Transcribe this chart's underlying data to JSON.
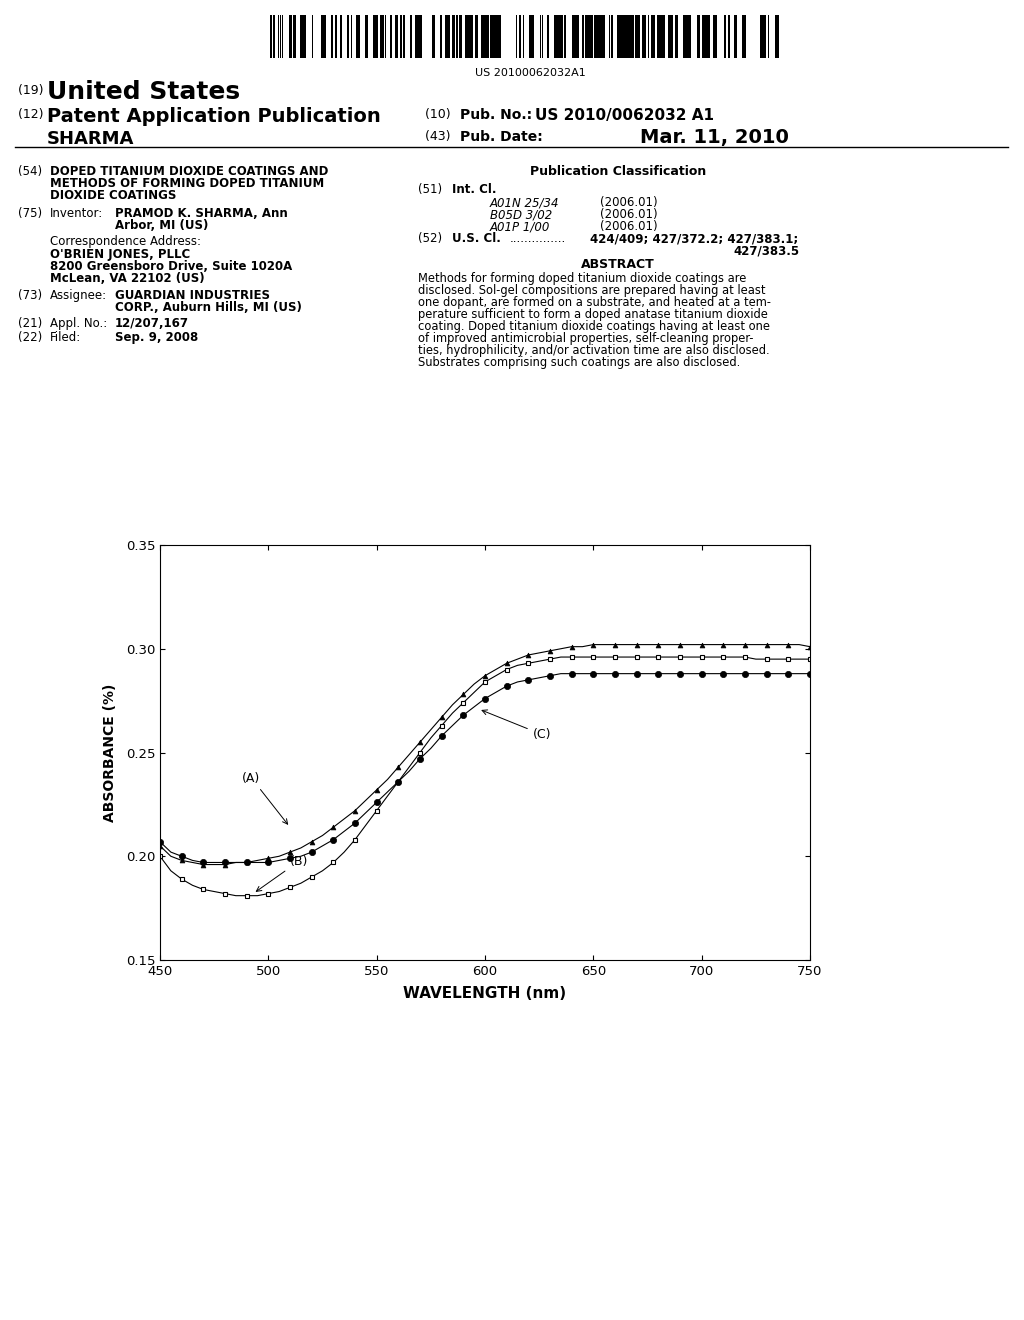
{
  "barcode_text": "US 20100062032A1",
  "pub_no_label": "(10) Pub. No.:",
  "pub_no_value": "US 2010/0062032 A1",
  "pub_date_label": "(43) Pub. Date:",
  "pub_date_value": "Mar. 11, 2010",
  "field_54_text_lines": [
    "DOPED TITANIUM DIOXIDE COATINGS AND",
    "METHODS OF FORMING DOPED TITANIUM",
    "DIOXIDE COATINGS"
  ],
  "field_75_text": "PRAMOD K. SHARMA, Ann\nArbor, MI (US)",
  "corr_address_lines": [
    "O'BRIEN JONES, PLLC",
    "8200 Greensboro Drive, Suite 1020A",
    "McLean, VA 22102 (US)"
  ],
  "field_73_text": "GUARDIAN INDUSTRIES\nCORP., Auburn Hills, MI (US)",
  "field_21_text": "12/207,167",
  "field_22_text": "Sep. 9, 2008",
  "field_51_lines": [
    [
      "A01N 25/34",
      "(2006.01)"
    ],
    [
      "B05D 3/02",
      "(2006.01)"
    ],
    [
      "A01P 1/00",
      "(2006.01)"
    ]
  ],
  "abstract_lines": [
    "Methods for forming doped titanium dioxide coatings are",
    "disclosed. Sol-gel compositions are prepared having at least",
    "one dopant, are formed on a substrate, and heated at a tem-",
    "perature sufficient to form a doped anatase titanium dioxide",
    "coating. Doped titanium dioxide coatings having at least one",
    "of improved antimicrobial properties, self-cleaning proper-",
    "ties, hydrophilicity, and/or activation time are also disclosed.",
    "Substrates comprising such coatings are also disclosed."
  ],
  "xlabel": "WAVELENGTH (nm)",
  "ylabel": "ABSORBANCE (%)",
  "xlim": [
    450,
    750
  ],
  "ylim": [
    0.15,
    0.35
  ],
  "yticks": [
    0.15,
    0.2,
    0.25,
    0.3,
    0.35
  ],
  "xticks": [
    450,
    500,
    550,
    600,
    650,
    700,
    750
  ],
  "series_A_x": [
    450,
    455,
    460,
    465,
    470,
    475,
    480,
    485,
    490,
    495,
    500,
    505,
    510,
    515,
    520,
    525,
    530,
    535,
    540,
    545,
    550,
    555,
    560,
    565,
    570,
    575,
    580,
    585,
    590,
    595,
    600,
    605,
    610,
    615,
    620,
    625,
    630,
    635,
    640,
    645,
    650,
    655,
    660,
    665,
    670,
    675,
    680,
    685,
    690,
    695,
    700,
    705,
    710,
    715,
    720,
    725,
    730,
    735,
    740,
    745,
    750
  ],
  "series_A_y": [
    0.205,
    0.2,
    0.198,
    0.197,
    0.196,
    0.196,
    0.196,
    0.197,
    0.197,
    0.198,
    0.199,
    0.2,
    0.202,
    0.204,
    0.207,
    0.21,
    0.214,
    0.218,
    0.222,
    0.227,
    0.232,
    0.237,
    0.243,
    0.249,
    0.255,
    0.261,
    0.267,
    0.273,
    0.278,
    0.283,
    0.287,
    0.29,
    0.293,
    0.295,
    0.297,
    0.298,
    0.299,
    0.3,
    0.301,
    0.301,
    0.302,
    0.302,
    0.302,
    0.302,
    0.302,
    0.302,
    0.302,
    0.302,
    0.302,
    0.302,
    0.302,
    0.302,
    0.302,
    0.302,
    0.302,
    0.302,
    0.302,
    0.302,
    0.302,
    0.302,
    0.301
  ],
  "series_B_x": [
    450,
    455,
    460,
    465,
    470,
    475,
    480,
    485,
    490,
    495,
    500,
    505,
    510,
    515,
    520,
    525,
    530,
    535,
    540,
    545,
    550,
    555,
    560,
    565,
    570,
    575,
    580,
    585,
    590,
    595,
    600,
    605,
    610,
    615,
    620,
    625,
    630,
    635,
    640,
    645,
    650,
    655,
    660,
    665,
    670,
    675,
    680,
    685,
    690,
    695,
    700,
    705,
    710,
    715,
    720,
    725,
    730,
    735,
    740,
    745,
    750
  ],
  "series_B_y": [
    0.2,
    0.193,
    0.189,
    0.186,
    0.184,
    0.183,
    0.182,
    0.181,
    0.181,
    0.181,
    0.182,
    0.183,
    0.185,
    0.187,
    0.19,
    0.193,
    0.197,
    0.202,
    0.208,
    0.215,
    0.222,
    0.229,
    0.236,
    0.243,
    0.25,
    0.257,
    0.263,
    0.269,
    0.274,
    0.279,
    0.284,
    0.287,
    0.29,
    0.292,
    0.293,
    0.294,
    0.295,
    0.296,
    0.296,
    0.296,
    0.296,
    0.296,
    0.296,
    0.296,
    0.296,
    0.296,
    0.296,
    0.296,
    0.296,
    0.296,
    0.296,
    0.296,
    0.296,
    0.296,
    0.296,
    0.295,
    0.295,
    0.295,
    0.295,
    0.295,
    0.295
  ],
  "series_C_x": [
    450,
    455,
    460,
    465,
    470,
    475,
    480,
    485,
    490,
    495,
    500,
    505,
    510,
    515,
    520,
    525,
    530,
    535,
    540,
    545,
    550,
    555,
    560,
    565,
    570,
    575,
    580,
    585,
    590,
    595,
    600,
    605,
    610,
    615,
    620,
    625,
    630,
    635,
    640,
    645,
    650,
    655,
    660,
    665,
    670,
    675,
    680,
    685,
    690,
    695,
    700,
    705,
    710,
    715,
    720,
    725,
    730,
    735,
    740,
    745,
    750
  ],
  "series_C_y": [
    0.207,
    0.202,
    0.2,
    0.198,
    0.197,
    0.197,
    0.197,
    0.197,
    0.197,
    0.197,
    0.197,
    0.198,
    0.199,
    0.2,
    0.202,
    0.205,
    0.208,
    0.212,
    0.216,
    0.221,
    0.226,
    0.231,
    0.236,
    0.241,
    0.247,
    0.252,
    0.258,
    0.263,
    0.268,
    0.272,
    0.276,
    0.279,
    0.282,
    0.284,
    0.285,
    0.286,
    0.287,
    0.288,
    0.288,
    0.288,
    0.288,
    0.288,
    0.288,
    0.288,
    0.288,
    0.288,
    0.288,
    0.288,
    0.288,
    0.288,
    0.288,
    0.288,
    0.288,
    0.288,
    0.288,
    0.288,
    0.288,
    0.288,
    0.288,
    0.288,
    0.288
  ],
  "bg_color": "#ffffff"
}
